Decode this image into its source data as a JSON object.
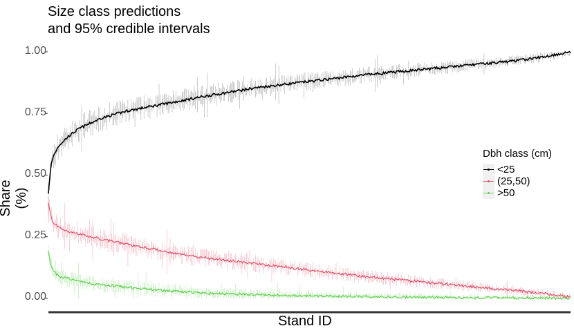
{
  "chart_data": {
    "type": "line",
    "title": "Size class predictions",
    "subtitle": "and 95% credible intervals",
    "xlabel": "Stand ID",
    "ylabel": "Share (%)",
    "ylim": [
      0,
      1
    ],
    "y_ticks": [
      "0.00",
      "0.25",
      "0.50",
      "0.75",
      "1.00"
    ],
    "grid": false,
    "legend": {
      "title": "Dbh class (cm)",
      "placement": "right",
      "entries": [
        "<25",
        "(25,50)",
        ">50"
      ]
    },
    "series": [
      {
        "name": "<25",
        "color": "#000000",
        "x_frac": [
          0,
          0.005,
          0.01,
          0.02,
          0.04,
          0.06,
          0.08,
          0.1,
          0.15,
          0.2,
          0.25,
          0.3,
          0.4,
          0.5,
          0.6,
          0.7,
          0.8,
          0.9,
          0.95,
          1.0
        ],
        "values": [
          0.43,
          0.54,
          0.58,
          0.62,
          0.66,
          0.69,
          0.71,
          0.73,
          0.76,
          0.78,
          0.8,
          0.82,
          0.855,
          0.88,
          0.905,
          0.925,
          0.945,
          0.965,
          0.98,
          1.0
        ]
      },
      {
        "name": "(25,50)",
        "color": "#df536b",
        "x_frac": [
          0,
          0.005,
          0.01,
          0.02,
          0.04,
          0.06,
          0.08,
          0.1,
          0.15,
          0.2,
          0.25,
          0.3,
          0.4,
          0.5,
          0.6,
          0.7,
          0.8,
          0.9,
          0.95,
          1.0
        ],
        "values": [
          0.38,
          0.33,
          0.3,
          0.29,
          0.27,
          0.26,
          0.25,
          0.24,
          0.22,
          0.2,
          0.18,
          0.165,
          0.14,
          0.115,
          0.09,
          0.07,
          0.05,
          0.03,
          0.02,
          0.005
        ]
      },
      {
        "name": ">50",
        "color": "#61d04f",
        "x_frac": [
          0,
          0.005,
          0.01,
          0.02,
          0.04,
          0.06,
          0.08,
          0.1,
          0.15,
          0.2,
          0.25,
          0.3,
          0.4,
          0.5,
          0.6,
          0.7,
          0.8,
          0.9,
          0.95,
          1.0
        ],
        "values": [
          0.19,
          0.13,
          0.11,
          0.09,
          0.08,
          0.07,
          0.06,
          0.055,
          0.045,
          0.035,
          0.028,
          0.022,
          0.015,
          0.01,
          0.007,
          0.005,
          0.003,
          0.002,
          0.001,
          0.0
        ]
      }
    ]
  }
}
